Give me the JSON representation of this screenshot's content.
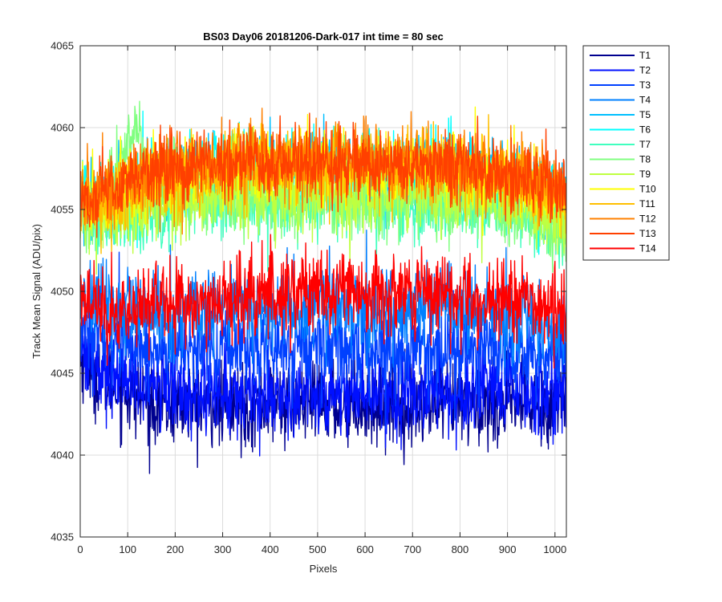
{
  "chart_data": {
    "type": "line",
    "title": "BS03 Day06 20181206-Dark-017 int time = 80 sec",
    "xlabel": "Pixels",
    "ylabel": "Track Mean Signal (ADU/pix)",
    "xlim": [
      0,
      1024
    ],
    "ylim": [
      4035,
      4065
    ],
    "xticks": [
      0,
      100,
      200,
      300,
      400,
      500,
      600,
      700,
      800,
      900,
      1000
    ],
    "yticks": [
      4035,
      4040,
      4045,
      4050,
      4055,
      4060,
      4065
    ],
    "grid": true,
    "legend_position": "outside-top-right",
    "series": [
      {
        "name": "T1",
        "color": "#00008f",
        "x": [
          0,
          50,
          150,
          300,
          500,
          700,
          900,
          1000,
          1024
        ],
        "y": [
          4046,
          4044.5,
          4043.2,
          4043,
          4043.2,
          4043,
          4043,
          4043,
          4044
        ]
      },
      {
        "name": "T2",
        "color": "#0010ff",
        "x": [
          0,
          50,
          150,
          300,
          500,
          700,
          900,
          1000,
          1024
        ],
        "y": [
          4047,
          4045,
          4044.2,
          4043.8,
          4043.8,
          4043.8,
          4043.8,
          4043.8,
          4045
        ]
      },
      {
        "name": "T3",
        "color": "#0040ff",
        "x": [
          0,
          50,
          150,
          300,
          500,
          700,
          900,
          1000,
          1024
        ],
        "y": [
          4048,
          4047,
          4046.5,
          4046.5,
          4046.7,
          4046.5,
          4046.5,
          4046,
          4046.5
        ]
      },
      {
        "name": "T4",
        "color": "#0080ff",
        "x": [
          0,
          50,
          150,
          300,
          500,
          700,
          900,
          1000,
          1024
        ],
        "y": [
          4050,
          4049,
          4048.5,
          4049,
          4049,
          4049,
          4048.5,
          4047.5,
          4048
        ]
      },
      {
        "name": "T5",
        "color": "#00bfff",
        "x": [
          0,
          50,
          150,
          300,
          500,
          700,
          900,
          1000,
          1024
        ],
        "y": [
          4056,
          4055,
          4056.5,
          4057,
          4057.5,
          4057.5,
          4057,
          4056,
          4055.5
        ]
      },
      {
        "name": "T6",
        "color": "#00ffff",
        "x": [
          0,
          50,
          150,
          300,
          500,
          700,
          900,
          1000,
          1024
        ],
        "y": [
          4056,
          4055.5,
          4057,
          4057.5,
          4057.5,
          4057.5,
          4057,
          4056,
          4055.5
        ]
      },
      {
        "name": "T7",
        "color": "#40ffbf",
        "x": [
          0,
          50,
          150,
          300,
          500,
          700,
          900,
          1000,
          1024
        ],
        "y": [
          4055,
          4054,
          4055,
          4055.5,
          4055.5,
          4055.5,
          4055,
          4054,
          4053.5
        ]
      },
      {
        "name": "T8",
        "color": "#80ff80",
        "x": [
          0,
          50,
          100,
          120,
          150,
          300,
          500,
          700,
          900,
          1000,
          1024
        ],
        "y": [
          4055,
          4055,
          4059,
          4060,
          4056.5,
          4055.5,
          4055.5,
          4055.5,
          4055,
          4054,
          4054
        ]
      },
      {
        "name": "T9",
        "color": "#bfff40",
        "x": [
          0,
          50,
          150,
          300,
          500,
          700,
          900,
          1000,
          1024
        ],
        "y": [
          4055,
          4054.5,
          4055.5,
          4056,
          4056,
          4056,
          4055.5,
          4054.5,
          4054
        ]
      },
      {
        "name": "T10",
        "color": "#ffff00",
        "x": [
          0,
          50,
          150,
          300,
          500,
          700,
          900,
          1000,
          1024
        ],
        "y": [
          4056,
          4055.5,
          4057,
          4057.5,
          4057.8,
          4057.5,
          4057,
          4056,
          4055.5
        ]
      },
      {
        "name": "T11",
        "color": "#ffbf00",
        "x": [
          0,
          50,
          150,
          300,
          500,
          700,
          900,
          1000,
          1024
        ],
        "y": [
          4055.5,
          4055,
          4056.5,
          4057,
          4057.5,
          4057.5,
          4057,
          4056,
          4055.5
        ]
      },
      {
        "name": "T12",
        "color": "#ff8000",
        "x": [
          0,
          50,
          150,
          300,
          400,
          500,
          700,
          900,
          1000,
          1024
        ],
        "y": [
          4056,
          4056,
          4057.5,
          4058,
          4058.2,
          4058,
          4058,
          4057.5,
          4056.5,
          4056
        ]
      },
      {
        "name": "T13",
        "color": "#ff4000",
        "x": [
          0,
          50,
          150,
          300,
          500,
          700,
          900,
          1000,
          1024
        ],
        "y": [
          4055.5,
          4056,
          4057.2,
          4057.8,
          4058,
          4057.8,
          4057.2,
          4056,
          4055.5
        ]
      },
      {
        "name": "T14",
        "color": "#ff0000",
        "x": [
          0,
          50,
          150,
          300,
          500,
          700,
          900,
          1000,
          1024
        ],
        "y": [
          4049.5,
          4048.5,
          4049,
          4049.5,
          4050,
          4050,
          4049.5,
          4049,
          4049
        ]
      }
    ]
  }
}
